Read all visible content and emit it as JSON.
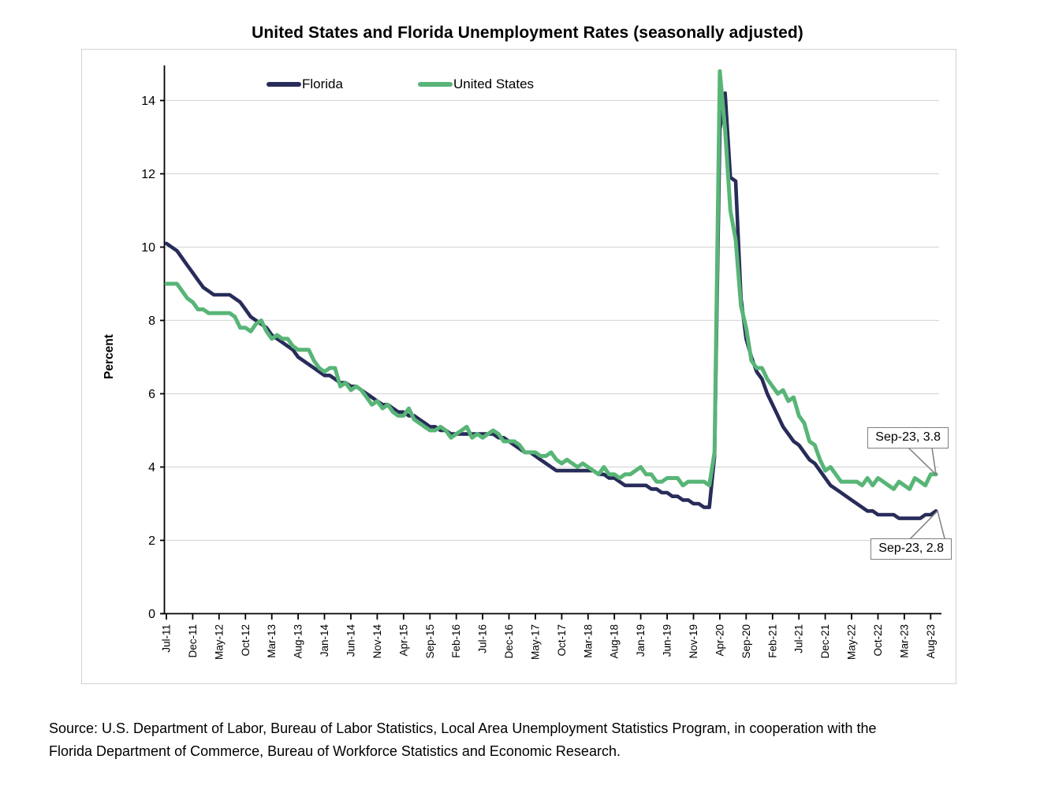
{
  "page": {
    "title": "United States and Florida Unemployment Rates (seasonally adjusted)",
    "source_line1": "Source:  U.S. Department of Labor, Bureau of Labor Statistics, Local Area Unemployment Statistics Program, in cooperation with the",
    "source_line2": "Florida Department of Commerce, Bureau of Workforce Statistics and Economic Research."
  },
  "chart_data": {
    "type": "line",
    "title": "United States and Florida Unemployment Rates (seasonally adjusted)",
    "xlabel": "",
    "ylabel": "Percent",
    "ylim": [
      0,
      14.9
    ],
    "y_ticks": [
      0,
      2,
      4,
      6,
      8,
      10,
      12,
      14
    ],
    "x_interval": "monthly",
    "x_start": "Jul-2011",
    "x_end": "Sep-2023",
    "x_tick_step_months": 5,
    "x_tick_labels": [
      "Jul-11",
      "Dec-11",
      "May-12",
      "Oct-12",
      "Mar-13",
      "Aug-13",
      "Jan-14",
      "Jun-14",
      "Nov-14",
      "Apr-15",
      "Sep-15",
      "Feb-16",
      "Jul-16",
      "Dec-16",
      "May-17",
      "Oct-17",
      "Mar-18",
      "Aug-18",
      "Jan-19",
      "Jun-19",
      "Nov-19",
      "Apr-20",
      "Sep-20",
      "Feb-21",
      "Jul-21",
      "Dec-21",
      "May-22",
      "Oct-22",
      "Mar-23",
      "Aug-23"
    ],
    "grid": "horizontal",
    "legend_position": "top-left-inside",
    "colors": {
      "florida_line": "#282c59",
      "united_states_line": "#58b577",
      "gridline": "#d9d9d9",
      "axis": "#000000",
      "callout_border": "#7f7f7f",
      "chart_border": "#d2d2d2"
    },
    "series": [
      {
        "name": "Florida",
        "color": "#282c59",
        "values": [
          10.1,
          10.0,
          9.9,
          9.7,
          9.5,
          9.3,
          9.1,
          8.9,
          8.8,
          8.7,
          8.7,
          8.7,
          8.7,
          8.6,
          8.5,
          8.3,
          8.1,
          8.0,
          7.9,
          7.8,
          7.6,
          7.5,
          7.4,
          7.3,
          7.2,
          7.0,
          6.9,
          6.8,
          6.7,
          6.6,
          6.5,
          6.5,
          6.4,
          6.3,
          6.3,
          6.2,
          6.2,
          6.1,
          6.0,
          5.9,
          5.8,
          5.7,
          5.7,
          5.6,
          5.5,
          5.5,
          5.4,
          5.4,
          5.3,
          5.2,
          5.1,
          5.1,
          5.0,
          5.0,
          4.9,
          4.9,
          4.9,
          4.9,
          4.9,
          4.9,
          4.9,
          4.9,
          4.9,
          4.8,
          4.8,
          4.7,
          4.6,
          4.5,
          4.4,
          4.4,
          4.3,
          4.2,
          4.1,
          4.0,
          3.9,
          3.9,
          3.9,
          3.9,
          3.9,
          3.9,
          3.9,
          3.9,
          3.8,
          3.8,
          3.7,
          3.7,
          3.6,
          3.5,
          3.5,
          3.5,
          3.5,
          3.5,
          3.4,
          3.4,
          3.3,
          3.3,
          3.2,
          3.2,
          3.1,
          3.1,
          3.0,
          3.0,
          2.9,
          2.9,
          4.3,
          13.2,
          14.2,
          11.9,
          11.8,
          8.6,
          7.5,
          7.0,
          6.6,
          6.4,
          6.0,
          5.7,
          5.4,
          5.1,
          4.9,
          4.7,
          4.6,
          4.4,
          4.2,
          4.1,
          3.9,
          3.7,
          3.5,
          3.4,
          3.3,
          3.2,
          3.1,
          3.0,
          2.9,
          2.8,
          2.8,
          2.7,
          2.7,
          2.7,
          2.7,
          2.6,
          2.6,
          2.6,
          2.6,
          2.6,
          2.7,
          2.7,
          2.8
        ]
      },
      {
        "name": "United States",
        "color": "#58b577",
        "values": [
          9.0,
          9.0,
          9.0,
          8.8,
          8.6,
          8.5,
          8.3,
          8.3,
          8.2,
          8.2,
          8.2,
          8.2,
          8.2,
          8.1,
          7.8,
          7.8,
          7.7,
          7.9,
          8.0,
          7.7,
          7.5,
          7.6,
          7.5,
          7.5,
          7.3,
          7.2,
          7.2,
          7.2,
          6.9,
          6.7,
          6.6,
          6.7,
          6.7,
          6.2,
          6.3,
          6.1,
          6.2,
          6.1,
          5.9,
          5.7,
          5.8,
          5.6,
          5.7,
          5.5,
          5.4,
          5.4,
          5.6,
          5.3,
          5.2,
          5.1,
          5.0,
          5.0,
          5.1,
          5.0,
          4.8,
          4.9,
          5.0,
          5.1,
          4.8,
          4.9,
          4.8,
          4.9,
          5.0,
          4.9,
          4.7,
          4.7,
          4.7,
          4.6,
          4.4,
          4.4,
          4.4,
          4.3,
          4.3,
          4.4,
          4.2,
          4.1,
          4.2,
          4.1,
          4.0,
          4.1,
          4.0,
          3.9,
          3.8,
          4.0,
          3.8,
          3.8,
          3.7,
          3.8,
          3.8,
          3.9,
          4.0,
          3.8,
          3.8,
          3.6,
          3.6,
          3.7,
          3.7,
          3.7,
          3.5,
          3.6,
          3.6,
          3.6,
          3.6,
          3.5,
          4.4,
          14.8,
          13.2,
          11.0,
          10.2,
          8.4,
          7.8,
          6.9,
          6.7,
          6.7,
          6.4,
          6.2,
          6.0,
          6.1,
          5.8,
          5.9,
          5.4,
          5.2,
          4.7,
          4.6,
          4.2,
          3.9,
          4.0,
          3.8,
          3.6,
          3.6,
          3.6,
          3.6,
          3.5,
          3.7,
          3.5,
          3.7,
          3.6,
          3.5,
          3.4,
          3.6,
          3.5,
          3.4,
          3.7,
          3.6,
          3.5,
          3.8,
          3.8
        ]
      }
    ],
    "annotations": [
      {
        "label": "Sep-23, 3.8",
        "series": "United States",
        "month": "Sep-23",
        "value": 3.8
      },
      {
        "label": "Sep-23, 2.8",
        "series": "Florida",
        "month": "Sep-23",
        "value": 2.8
      }
    ]
  }
}
